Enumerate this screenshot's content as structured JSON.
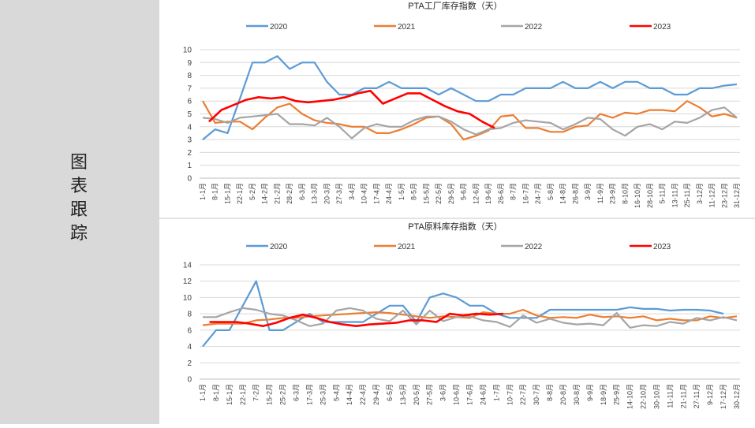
{
  "side_title": [
    "图",
    "表",
    "跟",
    "踪"
  ],
  "colors": {
    "2020": "#5b9bd5",
    "2021": "#ed7d31",
    "2022": "#a5a5a5",
    "2023": "#ff0000"
  },
  "chart_data": [
    {
      "type": "line",
      "title": "PTA工厂库存指数（天）",
      "legend_position": "top",
      "ylim": [
        0,
        10
      ],
      "yticks": [
        0,
        1,
        2,
        3,
        4,
        5,
        6,
        7,
        8,
        9,
        10
      ],
      "grid": true,
      "categories": [
        "1-1月",
        "8-1月",
        "15-1月",
        "22-1月",
        "5-2月",
        "14-2月",
        "21-2月",
        "28-2月",
        "6-3月",
        "13-3月",
        "20-3月",
        "27-3月",
        "3-4月",
        "10-4月",
        "17-4月",
        "24-4月",
        "1-5月",
        "8-5月",
        "15-5月",
        "22-5月",
        "29-5月",
        "5-6月",
        "12-6月",
        "19-6月",
        "26-6月",
        "8-7月",
        "16-7月",
        "24-7月",
        "5-8月",
        "14-8月",
        "26-8月",
        "3-9月",
        "11-9月",
        "23-9月",
        "8-10月",
        "16-10月",
        "28-10月",
        "5-11月",
        "13-11月",
        "25-11月",
        "3-12月",
        "11-12月",
        "23-12月",
        "31-12月"
      ],
      "x_range": [
        0,
        43
      ],
      "series": [
        {
          "name": "2020",
          "x": [
            0,
            1,
            2,
            3,
            4,
            5,
            6,
            7,
            8,
            9,
            10,
            11,
            12,
            13,
            14,
            15,
            16,
            17,
            18,
            19,
            20,
            21,
            22,
            23,
            24,
            25,
            26,
            27,
            28,
            29,
            30,
            31,
            32,
            33,
            34,
            35,
            36,
            37,
            38,
            39,
            40,
            41,
            42,
            43
          ],
          "values": [
            3.0,
            3.8,
            3.5,
            6.2,
            9.0,
            9.0,
            9.5,
            8.5,
            9.0,
            9.0,
            7.5,
            6.5,
            6.5,
            7.0,
            7.0,
            7.5,
            7.0,
            7.0,
            7.0,
            6.5,
            7.0,
            6.5,
            6.0,
            6.0,
            6.5,
            6.5,
            7.0,
            7.0,
            7.0,
            7.5,
            7.0,
            7.0,
            7.5,
            7.0,
            7.5,
            7.5,
            7.0,
            7.0,
            6.5,
            6.5,
            7.0,
            7.0,
            7.2,
            7.3
          ]
        },
        {
          "name": "2021",
          "x": [
            0,
            1,
            2,
            3,
            4,
            5,
            6,
            7,
            8,
            9,
            10,
            11,
            12,
            13,
            14,
            15,
            16,
            17,
            18,
            19,
            20,
            21,
            22,
            23,
            24,
            25,
            26,
            27,
            28,
            29,
            30,
            31,
            32,
            33,
            34,
            35,
            36,
            37,
            38,
            39,
            40,
            41,
            42,
            43
          ],
          "values": [
            6.0,
            4.3,
            4.4,
            4.4,
            3.8,
            4.7,
            5.5,
            5.8,
            5.0,
            4.5,
            4.3,
            4.2,
            4.0,
            4.0,
            3.5,
            3.5,
            3.8,
            4.2,
            4.7,
            4.8,
            4.2,
            3.0,
            3.3,
            3.7,
            4.8,
            4.9,
            3.9,
            3.9,
            3.6,
            3.6,
            4.0,
            4.1,
            5.0,
            4.7,
            5.1,
            5.0,
            5.3,
            5.3,
            5.2,
            6.0,
            5.5,
            4.8,
            5.0,
            4.7
          ]
        },
        {
          "name": "2022",
          "x": [
            0,
            1,
            2,
            3,
            4,
            5,
            6,
            7,
            8,
            9,
            10,
            11,
            12,
            13,
            14,
            15,
            16,
            17,
            18,
            19,
            20,
            21,
            22,
            23,
            24,
            25,
            26,
            27,
            28,
            29,
            30,
            31,
            32,
            33,
            34,
            35,
            36,
            37,
            38,
            39,
            40,
            41,
            42,
            43
          ],
          "values": [
            4.7,
            4.6,
            4.3,
            4.7,
            4.8,
            4.9,
            5.0,
            4.2,
            4.2,
            4.1,
            4.7,
            4.0,
            3.1,
            3.9,
            4.2,
            4.0,
            4.0,
            4.5,
            4.8,
            4.8,
            4.4,
            3.8,
            3.4,
            3.8,
            3.9,
            4.3,
            4.5,
            4.4,
            4.3,
            3.8,
            4.2,
            4.7,
            4.6,
            3.8,
            3.3,
            4.0,
            4.2,
            3.8,
            4.4,
            4.3,
            4.7,
            5.3,
            5.5,
            4.7
          ]
        },
        {
          "name": "2023",
          "x": [
            0.5,
            1.5,
            2.5,
            3.5,
            4.5,
            5.5,
            6.5,
            7.5,
            8.5,
            9.5,
            10.5,
            11.5,
            12.5,
            13.5,
            14.5,
            15.5,
            16.5,
            17.5,
            18.5,
            19.5,
            20.5,
            21.5,
            22.5,
            23.5
          ],
          "values": [
            4.4,
            5.3,
            5.7,
            6.1,
            6.3,
            6.2,
            6.3,
            6.0,
            5.9,
            6.0,
            6.1,
            6.3,
            6.6,
            6.8,
            5.8,
            6.2,
            6.6,
            6.6,
            6.1,
            5.6,
            5.2,
            5.0,
            4.4,
            3.9
          ]
        }
      ]
    },
    {
      "type": "line",
      "title": "PTA原料库存指数（天）",
      "legend_position": "top",
      "ylim": [
        0,
        14
      ],
      "yticks": [
        0,
        2,
        4,
        6,
        8,
        10,
        12,
        14
      ],
      "grid": true,
      "categories": [
        "1-1月",
        "8-1月",
        "15-1月",
        "22-1月",
        "7-2月",
        "15-2月",
        "25-2月",
        "6-3月",
        "17-3月",
        "25-3月",
        "5-4月",
        "14-4月",
        "22-4月",
        "29-4月",
        "6-5月",
        "13-5月",
        "20-5月",
        "27-5月",
        "3-6月",
        "10-6月",
        "17-6月",
        "24-6月",
        "1-7月",
        "10-7月",
        "22-7月",
        "30-7月",
        "8-8月",
        "20-8月",
        "30-8月",
        "9-9月",
        "18-9月",
        "25-9月",
        "14-10月",
        "22-10月",
        "30-10月",
        "11-11月",
        "21-11月",
        "27-11月",
        "9-12月",
        "17-12月",
        "30-12月"
      ],
      "x_range": [
        0,
        40
      ],
      "series": [
        {
          "name": "2020",
          "x": [
            0,
            1,
            2,
            3,
            4,
            5,
            6,
            7,
            8,
            9,
            10,
            11,
            12,
            13,
            14,
            15,
            16,
            17,
            18,
            19,
            20,
            21,
            22,
            23,
            24,
            25,
            26,
            27,
            28,
            29,
            30,
            31,
            32,
            33,
            34,
            35,
            36,
            37,
            38,
            39
          ],
          "values": [
            4.0,
            6.0,
            6.0,
            9.0,
            12.0,
            6.0,
            6.0,
            7.0,
            8.0,
            7.0,
            7.0,
            7.0,
            7.0,
            8.0,
            9.0,
            9.0,
            7.0,
            10.0,
            10.5,
            10.0,
            9.0,
            9.0,
            8.0,
            7.5,
            7.5,
            7.5,
            8.5,
            8.5,
            8.5,
            8.5,
            8.5,
            8.5,
            8.8,
            8.6,
            8.6,
            8.4,
            8.5,
            8.5,
            8.4,
            8.0
          ]
        },
        {
          "name": "2021",
          "x": [
            0,
            1,
            2,
            3,
            4,
            5,
            6,
            7,
            8,
            9,
            10,
            11,
            12,
            13,
            14,
            15,
            16,
            17,
            18,
            19,
            20,
            21,
            22,
            23,
            24,
            25,
            26,
            27,
            28,
            29,
            30,
            31,
            32,
            33,
            34,
            35,
            36,
            37,
            38,
            39,
            40
          ],
          "values": [
            6.6,
            6.8,
            6.8,
            6.8,
            7.2,
            7.3,
            7.5,
            7.5,
            7.7,
            7.8,
            7.9,
            8.0,
            8.1,
            8.2,
            8.1,
            7.9,
            7.7,
            7.5,
            7.7,
            7.6,
            7.5,
            8.2,
            8.0,
            8.0,
            8.5,
            7.8,
            7.5,
            7.6,
            7.5,
            7.9,
            7.6,
            7.7,
            7.5,
            7.7,
            7.2,
            7.4,
            7.2,
            7.2,
            7.7,
            7.5,
            7.7
          ]
        },
        {
          "name": "2022",
          "x": [
            0,
            1,
            2,
            3,
            4,
            5,
            6,
            7,
            8,
            9,
            10,
            11,
            12,
            13,
            14,
            15,
            16,
            17,
            18,
            19,
            20,
            21,
            22,
            23,
            24,
            25,
            26,
            27,
            28,
            29,
            30,
            31,
            32,
            33,
            34,
            35,
            36,
            37,
            38,
            39,
            40
          ],
          "values": [
            7.6,
            7.6,
            8.2,
            8.7,
            8.5,
            8.0,
            7.8,
            7.2,
            6.5,
            6.8,
            8.4,
            8.7,
            8.4,
            7.4,
            7.1,
            8.4,
            6.7,
            8.4,
            7.1,
            7.6,
            7.7,
            7.2,
            7.0,
            6.4,
            7.8,
            6.9,
            7.4,
            6.9,
            6.7,
            6.8,
            6.6,
            8.1,
            6.3,
            6.6,
            6.5,
            7.0,
            6.8,
            7.5,
            7.2,
            7.6,
            7.2
          ]
        },
        {
          "name": "2023",
          "x": [
            0.5,
            1.5,
            2.5,
            3.5,
            4.5,
            5.5,
            6.5,
            7.5,
            8.5,
            9.5,
            10.5,
            11.5,
            12.5,
            13.5,
            14.5,
            15.5,
            16.5,
            17.5,
            18.5,
            19.5,
            20.5,
            21.5,
            22.5
          ],
          "values": [
            7.0,
            7.0,
            7.0,
            6.8,
            6.5,
            6.9,
            7.5,
            7.9,
            7.5,
            7.0,
            6.7,
            6.5,
            6.7,
            6.8,
            6.9,
            7.2,
            7.2,
            7.0,
            8.0,
            7.8,
            8.0,
            7.9,
            8.0
          ]
        }
      ]
    }
  ]
}
